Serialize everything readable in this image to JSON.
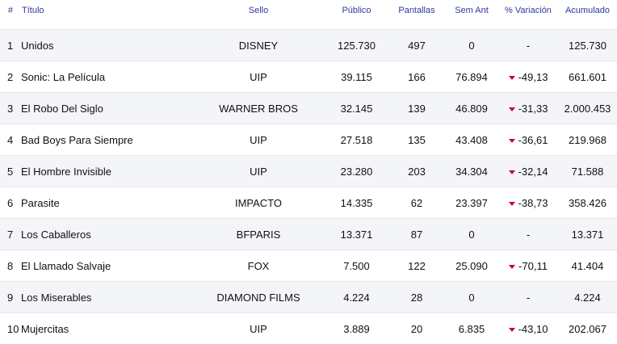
{
  "header": {
    "rank": "#",
    "title": "Título",
    "label": "Sello",
    "public": "Público",
    "screens": "Pantallas",
    "prev_week": "Sem Ant",
    "variation": "% Variación",
    "accumulated": "Acumulado"
  },
  "colors": {
    "header_text": "#2e3a9e",
    "down_arrow": "#d0021b",
    "stripe": "#f4f5f9"
  },
  "rows": [
    {
      "rank": "1",
      "title": "Unidos",
      "label": "DISNEY",
      "public": "125.730",
      "screens": "497",
      "prev_week": "0",
      "variation": "-",
      "down": false,
      "accumulated": "125.730"
    },
    {
      "rank": "2",
      "title": "Sonic: La Película",
      "label": "UIP",
      "public": "39.115",
      "screens": "166",
      "prev_week": "76.894",
      "variation": "-49,13",
      "down": true,
      "accumulated": "661.601"
    },
    {
      "rank": "3",
      "title": "El Robo Del Siglo",
      "label": "WARNER BROS",
      "public": "32.145",
      "screens": "139",
      "prev_week": "46.809",
      "variation": "-31,33",
      "down": true,
      "accumulated": "2.000.453"
    },
    {
      "rank": "4",
      "title": "Bad Boys Para Siempre",
      "label": "UIP",
      "public": "27.518",
      "screens": "135",
      "prev_week": "43.408",
      "variation": "-36,61",
      "down": true,
      "accumulated": "219.968"
    },
    {
      "rank": "5",
      "title": "El Hombre Invisible",
      "label": "UIP",
      "public": "23.280",
      "screens": "203",
      "prev_week": "34.304",
      "variation": "-32,14",
      "down": true,
      "accumulated": "71.588"
    },
    {
      "rank": "6",
      "title": "Parasite",
      "label": "IMPACTO",
      "public": "14.335",
      "screens": "62",
      "prev_week": "23.397",
      "variation": "-38,73",
      "down": true,
      "accumulated": "358.426"
    },
    {
      "rank": "7",
      "title": "Los Caballeros",
      "label": "BFPARIS",
      "public": "13.371",
      "screens": "87",
      "prev_week": "0",
      "variation": "-",
      "down": false,
      "accumulated": "13.371"
    },
    {
      "rank": "8",
      "title": "El Llamado Salvaje",
      "label": "FOX",
      "public": "7.500",
      "screens": "122",
      "prev_week": "25.090",
      "variation": "-70,11",
      "down": true,
      "accumulated": "41.404"
    },
    {
      "rank": "9",
      "title": "Los Miserables",
      "label": "DIAMOND FILMS",
      "public": "4.224",
      "screens": "28",
      "prev_week": "0",
      "variation": "-",
      "down": false,
      "accumulated": "4.224"
    },
    {
      "rank": "10",
      "title": "Mujercitas",
      "label": "UIP",
      "public": "3.889",
      "screens": "20",
      "prev_week": "6.835",
      "variation": "-43,10",
      "down": true,
      "accumulated": "202.067"
    }
  ]
}
